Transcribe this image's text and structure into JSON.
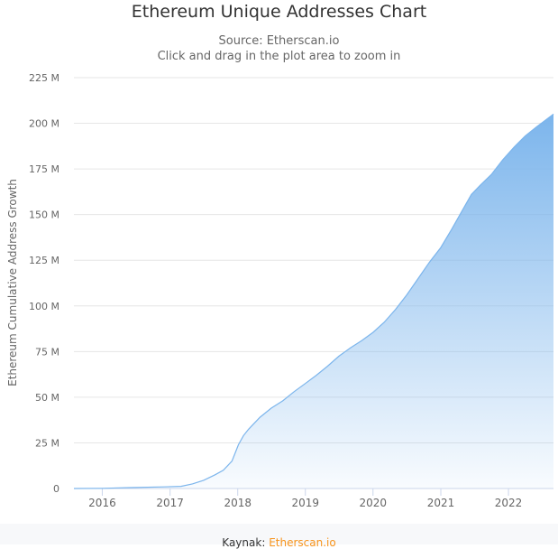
{
  "chart_data": {
    "type": "area",
    "title": "Ethereum Unique Addresses Chart",
    "subtitle": "Source: Etherscan.io",
    "zoom_hint": "Click and drag in the plot area to zoom in",
    "ylabel": "Ethereum Cumulative Address Growth",
    "xlabel": "",
    "x_ticks": [
      "2016",
      "2017",
      "2018",
      "2019",
      "2020",
      "2021",
      "2022"
    ],
    "y_ticks": [
      "0",
      "25 M",
      "50 M",
      "75 M",
      "100 M",
      "125 M",
      "150 M",
      "175 M",
      "200 M",
      "225 M"
    ],
    "ylim": [
      0,
      225
    ],
    "y_unit": "M",
    "grid": true,
    "legend": "none",
    "series": [
      {
        "color": "#7cb5ec",
        "points": [
          [
            "2015-08-01",
            0
          ],
          [
            "2016-01-01",
            0.1
          ],
          [
            "2016-06-01",
            0.5
          ],
          [
            "2016-12-01",
            0.9
          ],
          [
            "2017-03-01",
            1.2
          ],
          [
            "2017-05-01",
            2.5
          ],
          [
            "2017-07-01",
            4.5
          ],
          [
            "2017-09-01",
            7.5
          ],
          [
            "2017-10-15",
            10.0
          ],
          [
            "2017-12-01",
            15.0
          ],
          [
            "2017-12-20",
            20.0
          ],
          [
            "2018-01-05",
            24.0
          ],
          [
            "2018-02-01",
            29.0
          ],
          [
            "2018-03-01",
            32.5
          ],
          [
            "2018-05-01",
            39.0
          ],
          [
            "2018-07-01",
            44.0
          ],
          [
            "2018-09-01",
            48.0
          ],
          [
            "2018-11-01",
            53.0
          ],
          [
            "2019-01-01",
            57.5
          ],
          [
            "2019-03-01",
            62.0
          ],
          [
            "2019-05-01",
            67.0
          ],
          [
            "2019-07-01",
            72.5
          ],
          [
            "2019-09-01",
            77.0
          ],
          [
            "2019-11-01",
            81.0
          ],
          [
            "2020-01-01",
            85.5
          ],
          [
            "2020-03-01",
            91.0
          ],
          [
            "2020-05-01",
            98.0
          ],
          [
            "2020-07-01",
            106.0
          ],
          [
            "2020-09-01",
            115.0
          ],
          [
            "2020-11-01",
            124.0
          ],
          [
            "2021-01-01",
            132.0
          ],
          [
            "2021-03-01",
            142.0
          ],
          [
            "2021-05-01",
            153.0
          ],
          [
            "2021-06-15",
            161.0
          ],
          [
            "2021-08-01",
            166.0
          ],
          [
            "2021-10-01",
            172.0
          ],
          [
            "2021-12-01",
            180.0
          ],
          [
            "2022-02-01",
            187.0
          ],
          [
            "2022-04-01",
            193.0
          ],
          [
            "2022-06-01",
            198.0
          ],
          [
            "2022-09-01",
            205.0
          ]
        ]
      }
    ]
  },
  "footer": {
    "prefix": "Kaynak: ",
    "link": "Etherscan.io"
  }
}
